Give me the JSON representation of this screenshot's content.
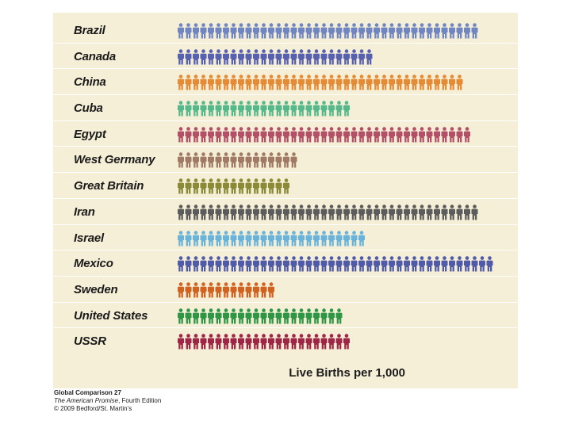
{
  "chart_data": {
    "type": "bar",
    "xlabel": "Live Births per 1,000",
    "categories": [
      "Brazil",
      "Canada",
      "China",
      "Cuba",
      "Egypt",
      "West Germany",
      "Great Britain",
      "Iran",
      "Israel",
      "Mexico",
      "Sweden",
      "United States",
      "USSR"
    ],
    "values": [
      40,
      26,
      38,
      23,
      39,
      16,
      15,
      40,
      25,
      42,
      13,
      22,
      23
    ],
    "colors": [
      "#6f86c2",
      "#5860b0",
      "#e58a35",
      "#56b98c",
      "#b44f68",
      "#a07a64",
      "#8a8a37",
      "#5c5c5c",
      "#6ab4dc",
      "#4f5aa9",
      "#d2621f",
      "#2e9645",
      "#9e2545"
    ],
    "icon": "person-icon",
    "grid": false,
    "legend": "none"
  },
  "credits": {
    "line1": "Global Comparison 27",
    "line2_title": "The American Promise",
    "line2_rest": ", Fourth Edition",
    "line3": "© 2009 Bedford/St. Martin’s"
  }
}
